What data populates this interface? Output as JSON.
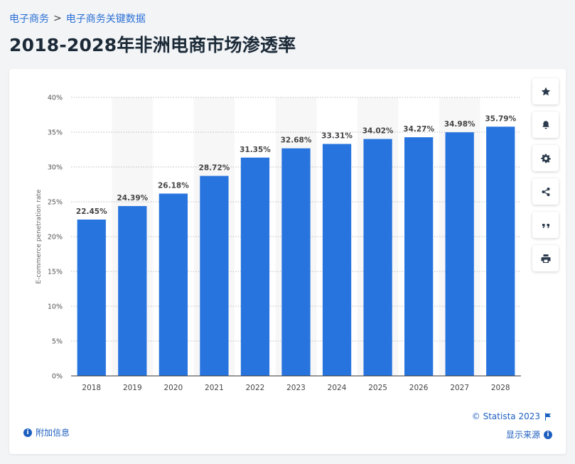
{
  "breadcrumb": {
    "item1": "电子商务",
    "separator": ">",
    "item2": "电子商务关键数据"
  },
  "title": "2018-2028年非洲电商市场渗透率",
  "tools": [
    {
      "icon": "star-icon"
    },
    {
      "icon": "bell-icon"
    },
    {
      "icon": "gear-icon"
    },
    {
      "icon": "share-icon"
    },
    {
      "icon": "quote-icon"
    },
    {
      "icon": "print-icon"
    }
  ],
  "footer": {
    "info_label": "附加信息",
    "copyright": "© Statista 2023",
    "source_label": "显示来源"
  },
  "colors": {
    "bar": "#2874de",
    "accent": "#1d5fbf"
  },
  "chart_data": {
    "type": "bar",
    "categories": [
      "2018",
      "2019",
      "2020",
      "2021",
      "2022",
      "2023",
      "2024",
      "2025",
      "2026",
      "2027",
      "2028"
    ],
    "values": [
      22.45,
      24.39,
      26.18,
      28.72,
      31.35,
      32.68,
      33.31,
      34.02,
      34.27,
      34.98,
      35.79
    ],
    "value_labels": [
      "22.45%",
      "24.39%",
      "26.18%",
      "28.72%",
      "31.35%",
      "32.68%",
      "33.31%",
      "34.02%",
      "34.27%",
      "34.98%",
      "35.79%"
    ],
    "ylabel": "E-commerce penetration rate",
    "ylim": [
      0,
      40
    ],
    "yticks": [
      0,
      5,
      10,
      15,
      20,
      25,
      30,
      35,
      40
    ],
    "ytick_labels": [
      "0%",
      "5%",
      "10%",
      "15%",
      "20%",
      "25%",
      "30%",
      "35%",
      "40%"
    ],
    "grid": true,
    "alternate_column_shading": true
  }
}
